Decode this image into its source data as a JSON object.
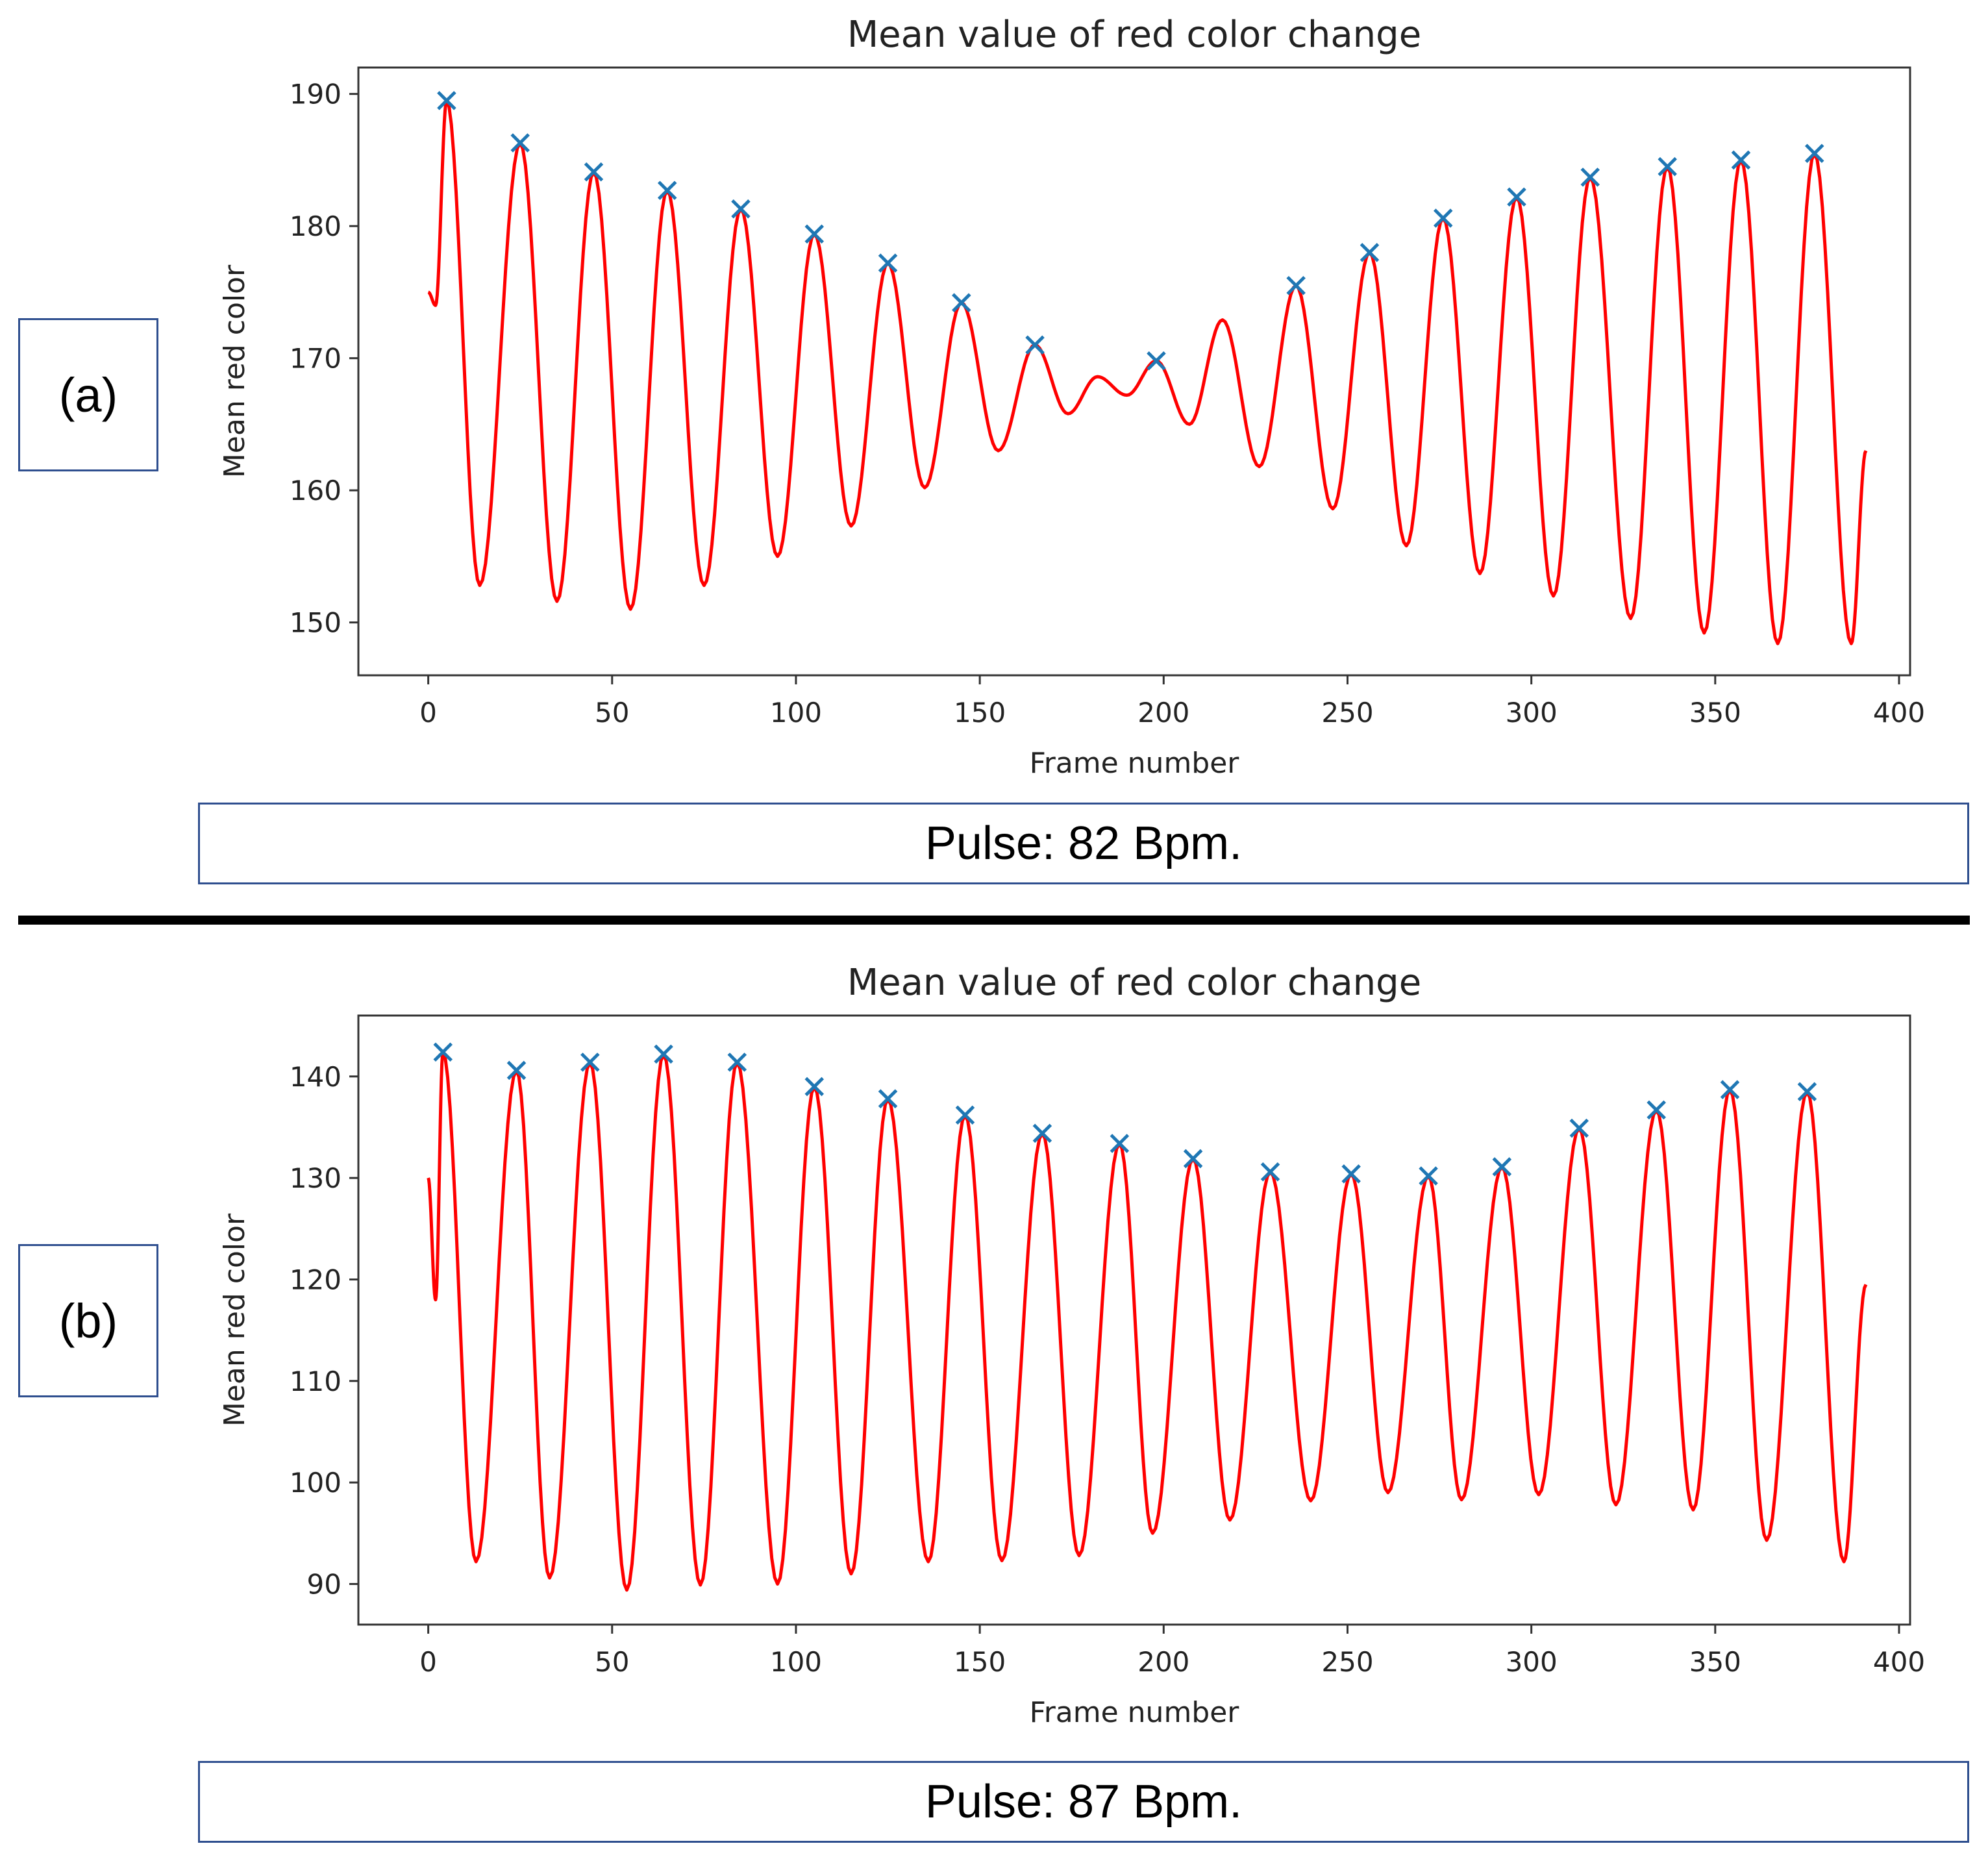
{
  "colors": {
    "line": "#ff0000",
    "marker": "#1f77b4",
    "frame": "#333333",
    "box_border": "#2f4f8f"
  },
  "panels": [
    {
      "label": "(a)",
      "pulse": "Pulse: 82 Bpm."
    },
    {
      "label": "(b)",
      "pulse": "Pulse: 87 Bpm."
    }
  ],
  "chart_data": [
    {
      "type": "line",
      "title": "Mean value of red color change",
      "xlabel": "Frame number",
      "ylabel": "Mean red color",
      "xlim": [
        -19,
        403
      ],
      "ylim": [
        146,
        192
      ],
      "xticks": [
        0,
        50,
        100,
        150,
        200,
        250,
        300,
        350,
        400
      ],
      "yticks": [
        150,
        160,
        170,
        180,
        190
      ],
      "start": {
        "x": 0,
        "y": 175
      },
      "end": {
        "x": 391,
        "y": 163
      },
      "peaks": [
        {
          "x": 5,
          "y": 189.5
        },
        {
          "x": 25,
          "y": 186.3
        },
        {
          "x": 45,
          "y": 184.1
        },
        {
          "x": 65,
          "y": 182.7
        },
        {
          "x": 85,
          "y": 181.3
        },
        {
          "x": 105,
          "y": 179.4
        },
        {
          "x": 125,
          "y": 177.2
        },
        {
          "x": 145,
          "y": 174.2
        },
        {
          "x": 165,
          "y": 171.0
        },
        {
          "x": 182,
          "y": 168.6,
          "marked": false
        },
        {
          "x": 198,
          "y": 169.8
        },
        {
          "x": 216,
          "y": 172.9,
          "marked": false
        },
        {
          "x": 236,
          "y": 175.5
        },
        {
          "x": 256,
          "y": 178.0
        },
        {
          "x": 276,
          "y": 180.6
        },
        {
          "x": 296,
          "y": 182.2
        },
        {
          "x": 316,
          "y": 183.7
        },
        {
          "x": 337,
          "y": 184.5
        },
        {
          "x": 357,
          "y": 185.0
        },
        {
          "x": 377,
          "y": 185.5
        }
      ],
      "troughs": [
        {
          "x": 2,
          "y": 174
        },
        {
          "x": 14,
          "y": 152.8
        },
        {
          "x": 35,
          "y": 151.6
        },
        {
          "x": 55,
          "y": 151.0
        },
        {
          "x": 75,
          "y": 152.8
        },
        {
          "x": 95,
          "y": 155.0
        },
        {
          "x": 115,
          "y": 157.3
        },
        {
          "x": 135,
          "y": 160.2
        },
        {
          "x": 155,
          "y": 163.0
        },
        {
          "x": 174,
          "y": 165.8
        },
        {
          "x": 190,
          "y": 167.2
        },
        {
          "x": 207,
          "y": 165.0
        },
        {
          "x": 226,
          "y": 161.8
        },
        {
          "x": 246,
          "y": 158.6
        },
        {
          "x": 266,
          "y": 155.8
        },
        {
          "x": 286,
          "y": 153.7
        },
        {
          "x": 306,
          "y": 152.0
        },
        {
          "x": 327,
          "y": 150.3
        },
        {
          "x": 347,
          "y": 149.2
        },
        {
          "x": 367,
          "y": 148.4
        },
        {
          "x": 387,
          "y": 148.4
        }
      ]
    },
    {
      "type": "line",
      "title": "Mean value of red color change",
      "xlabel": "Frame number",
      "ylabel": "Mean red color",
      "xlim": [
        -19,
        403
      ],
      "ylim": [
        86,
        146
      ],
      "xticks": [
        0,
        50,
        100,
        150,
        200,
        250,
        300,
        350,
        400
      ],
      "yticks": [
        90,
        100,
        110,
        120,
        130,
        140
      ],
      "start": {
        "x": 0,
        "y": 130
      },
      "end": {
        "x": 391,
        "y": 119.5
      },
      "peaks": [
        {
          "x": 4,
          "y": 142.4
        },
        {
          "x": 24,
          "y": 140.6
        },
        {
          "x": 44,
          "y": 141.4
        },
        {
          "x": 64,
          "y": 142.2
        },
        {
          "x": 84,
          "y": 141.4
        },
        {
          "x": 105,
          "y": 139.0
        },
        {
          "x": 125,
          "y": 137.8
        },
        {
          "x": 146,
          "y": 136.2
        },
        {
          "x": 167,
          "y": 134.4
        },
        {
          "x": 188,
          "y": 133.4
        },
        {
          "x": 208,
          "y": 131.9
        },
        {
          "x": 229,
          "y": 130.6
        },
        {
          "x": 251,
          "y": 130.4
        },
        {
          "x": 272,
          "y": 130.2
        },
        {
          "x": 292,
          "y": 131.1
        },
        {
          "x": 313,
          "y": 134.9
        },
        {
          "x": 334,
          "y": 136.7
        },
        {
          "x": 354,
          "y": 138.7
        },
        {
          "x": 375,
          "y": 138.5
        }
      ],
      "troughs": [
        {
          "x": 2,
          "y": 118
        },
        {
          "x": 13,
          "y": 92.2
        },
        {
          "x": 33,
          "y": 90.6
        },
        {
          "x": 54,
          "y": 89.4
        },
        {
          "x": 74,
          "y": 89.9
        },
        {
          "x": 95,
          "y": 90.0
        },
        {
          "x": 115,
          "y": 91.0
        },
        {
          "x": 136,
          "y": 92.2
        },
        {
          "x": 156,
          "y": 92.3
        },
        {
          "x": 177,
          "y": 92.8
        },
        {
          "x": 197,
          "y": 95.0
        },
        {
          "x": 218,
          "y": 96.3
        },
        {
          "x": 240,
          "y": 98.2
        },
        {
          "x": 261,
          "y": 99.0
        },
        {
          "x": 281,
          "y": 98.3
        },
        {
          "x": 302,
          "y": 98.8
        },
        {
          "x": 323,
          "y": 97.8
        },
        {
          "x": 344,
          "y": 97.3
        },
        {
          "x": 364,
          "y": 94.3
        },
        {
          "x": 385,
          "y": 92.2
        }
      ]
    }
  ]
}
